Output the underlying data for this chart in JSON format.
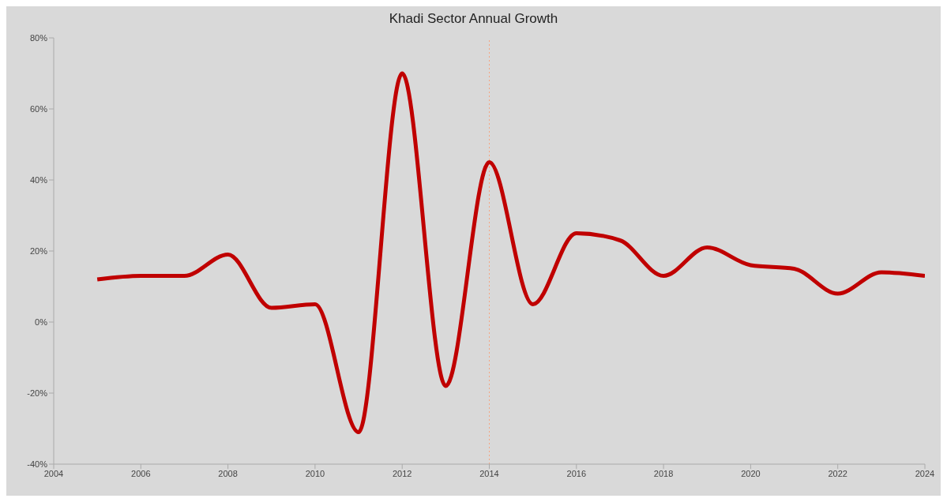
{
  "chart_data": {
    "type": "line",
    "title": "Khadi Sector Annual Growth",
    "x": [
      2005,
      2006,
      2007,
      2008,
      2009,
      2010,
      2011,
      2012,
      2013,
      2014,
      2015,
      2016,
      2017,
      2018,
      2019,
      2020,
      2021,
      2022,
      2023,
      2024
    ],
    "series": [
      {
        "color": "#c00000",
        "values": [
          12,
          13,
          13,
          19,
          4,
          5,
          -31,
          70,
          -18,
          45,
          5,
          25,
          23,
          13,
          21,
          16,
          15,
          8,
          14,
          13
        ]
      }
    ],
    "xlim": [
      2004,
      2024
    ],
    "xticks": [
      2004,
      2006,
      2008,
      2010,
      2012,
      2014,
      2016,
      2018,
      2020,
      2022,
      2024
    ],
    "ylim": [
      -40,
      80
    ],
    "yticks": [
      {
        "value": -40,
        "label": "-40%"
      },
      {
        "value": -20,
        "label": "-20%"
      },
      {
        "value": 0,
        "label": "0%"
      },
      {
        "value": 20,
        "label": "20%"
      },
      {
        "value": 40,
        "label": "40%"
      },
      {
        "value": 60,
        "label": "60%"
      },
      {
        "value": 80,
        "label": "80%"
      }
    ],
    "ref_lines": [
      {
        "axis": "x",
        "value": 2014,
        "color": "#f4a582",
        "line_style": "dotted"
      }
    ],
    "grid": false,
    "legend": false,
    "marker": "none",
    "line_style": "solid"
  }
}
